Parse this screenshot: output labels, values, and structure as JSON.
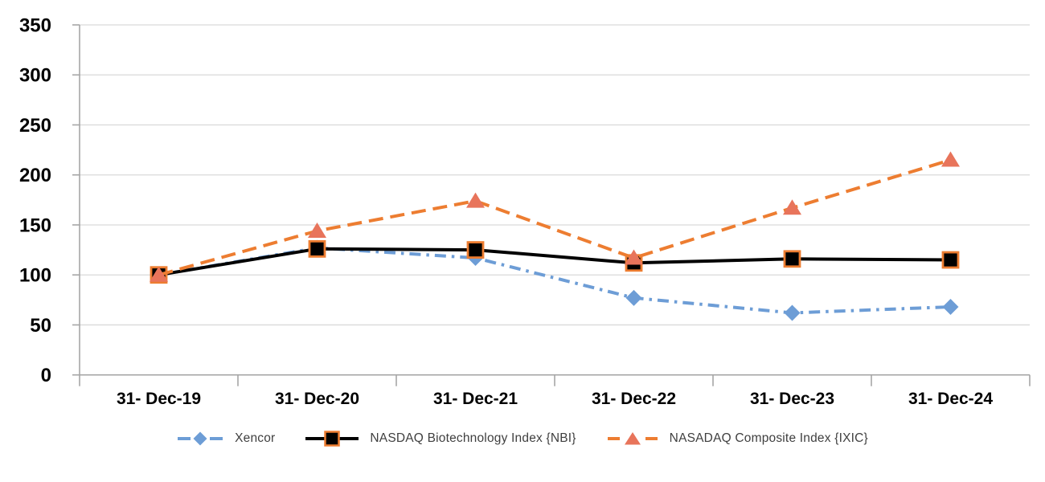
{
  "chart": {
    "background_color": "#FFFFFF",
    "grid_color": "#D9D9D9",
    "axis_color": "#A6A6A6",
    "tick_label_color": "#000000",
    "legend_text_color": "#3F3F3F"
  },
  "chart_data": {
    "type": "line",
    "title": "",
    "categories": [
      "31- Dec-19",
      "31- Dec-20",
      "31- Dec-21",
      "31- Dec-22",
      "31- Dec-23",
      "31- Dec-24"
    ],
    "series": [
      {
        "name": "Xencor",
        "values": [
          100,
          127,
          117,
          77,
          62,
          68
        ],
        "color": "#6D9DD6",
        "marker": "diamond",
        "marker_fill": "#6D9DD6",
        "line_style": "dash-dot"
      },
      {
        "name": "NASDAQ Biotechnology Index {NBI}",
        "values": [
          100,
          126,
          125,
          112,
          116,
          115
        ],
        "color": "#000000",
        "marker": "square",
        "marker_fill": "#000000",
        "marker_border": "#ED7D31",
        "line_style": "solid"
      },
      {
        "name": "NASADAQ Composite Index {IXIC}",
        "values": [
          100,
          144,
          174,
          117,
          167,
          215
        ],
        "color": "#ED7D31",
        "marker": "triangle",
        "marker_fill": "#E8745B",
        "line_style": "dashed"
      }
    ],
    "ylim": [
      0,
      350
    ],
    "yticks": [
      0,
      50,
      100,
      150,
      200,
      250,
      300,
      350
    ],
    "grid": "horizontal",
    "legend_position": "bottom"
  }
}
